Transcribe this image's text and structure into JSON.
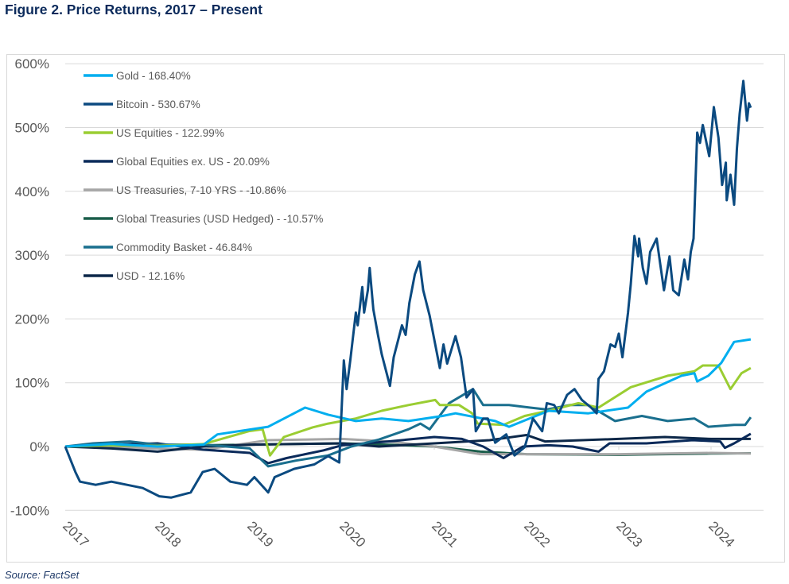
{
  "title": "Figure 2. Price Returns, 2017 – Present",
  "source": "Source: FactSet",
  "chart_data": {
    "type": "line",
    "title": "Figure 2. Price Returns, 2017 – Present",
    "xlabel": "",
    "ylabel": "",
    "x_units": "year",
    "xlim": [
      2017,
      2024.45
    ],
    "ylim": [
      -100,
      600
    ],
    "y_ticks": [
      600,
      500,
      400,
      300,
      200,
      100,
      0,
      -100
    ],
    "y_tick_labels": [
      "600%",
      "500%",
      "400%",
      "300%",
      "200%",
      "100%",
      "0%",
      "-100%"
    ],
    "x_ticks": [
      2017,
      2018,
      2019,
      2020,
      2021,
      2022,
      2023,
      2024
    ],
    "x_tick_labels": [
      "2017",
      "2018",
      "2019",
      "2020",
      "2021",
      "2022",
      "2023",
      "2024"
    ],
    "grid": "horizontal",
    "legend_position": "top-left",
    "series": [
      {
        "name": "Gold - 168.40%",
        "color": "#00aeef",
        "x": [
          2017,
          2017.5,
          2018,
          2018.5,
          2018.65,
          2019.2,
          2019.6,
          2019.85,
          2020.15,
          2020.43,
          2020.72,
          2021.09,
          2021.23,
          2021.66,
          2021.81,
          2022.24,
          2022.67,
          2023.1,
          2023.3,
          2023.68,
          2023.82,
          2023.85,
          2023.97,
          2024.11,
          2024.25,
          2024.43
        ],
        "y": [
          0,
          4,
          0,
          3,
          19,
          31,
          61,
          50,
          40,
          44,
          40,
          48,
          52,
          40,
          31,
          56,
          52,
          61,
          86,
          111,
          115,
          102,
          111,
          131,
          164,
          168
        ]
      },
      {
        "name": "Bitcoin - 530.67%",
        "color": "#0b4a80",
        "x": [
          2017,
          2017.11,
          2017.16,
          2017.33,
          2017.5,
          2017.67,
          2017.84,
          2018.02,
          2018.15,
          2018.36,
          2018.49,
          2018.62,
          2018.79,
          2018.97,
          2019.05,
          2019.2,
          2019.27,
          2019.48,
          2019.7,
          2019.85,
          2019.97,
          2020.02,
          2020.05,
          2020.09,
          2020.15,
          2020.17,
          2020.22,
          2020.24,
          2020.28,
          2020.3,
          2020.34,
          2020.39,
          2020.43,
          2020.52,
          2020.56,
          2020.65,
          2020.69,
          2020.73,
          2020.79,
          2020.84,
          2020.88,
          2020.95,
          2021.01,
          2021.06,
          2021.1,
          2021.14,
          2021.23,
          2021.29,
          2021.35,
          2021.42,
          2021.45,
          2021.53,
          2021.58,
          2021.66,
          2021.78,
          2021.87,
          2021.98,
          2022.07,
          2022.17,
          2022.22,
          2022.3,
          2022.35,
          2022.44,
          2022.52,
          2022.6,
          2022.7,
          2022.76,
          2022.78,
          2022.84,
          2022.91,
          2022.96,
          2023,
          2023.04,
          2023.1,
          2023.13,
          2023.17,
          2023.21,
          2023.22,
          2023.26,
          2023.3,
          2023.34,
          2023.41,
          2023.45,
          2023.49,
          2023.55,
          2023.59,
          2023.65,
          2023.71,
          2023.75,
          2023.78,
          2023.81,
          2023.85,
          2023.88,
          2023.91,
          2023.98,
          2024.03,
          2024.08,
          2024.12,
          2024.16,
          2024.17,
          2024.21,
          2024.25,
          2024.28,
          2024.31,
          2024.35,
          2024.39,
          2024.41,
          2024.43
        ],
        "y": [
          0,
          -40,
          -55,
          -60,
          -55,
          -60,
          -65,
          -78,
          -80,
          -72,
          -40,
          -35,
          -55,
          -60,
          -48,
          -72,
          -48,
          -35,
          -28,
          -15,
          -25,
          135,
          90,
          135,
          210,
          190,
          250,
          210,
          245,
          280,
          215,
          175,
          145,
          95,
          140,
          190,
          175,
          225,
          270,
          290,
          245,
          205,
          160,
          123,
          160,
          130,
          173,
          140,
          77,
          90,
          24,
          44,
          44,
          6,
          19,
          -14,
          -1,
          44,
          24,
          68,
          65,
          52,
          81,
          90,
          73,
          61,
          52,
          106,
          118,
          160,
          156,
          177,
          140,
          210,
          255,
          330,
          298,
          326,
          280,
          255,
          305,
          326,
          285,
          245,
          298,
          245,
          237,
          293,
          262,
          305,
          326,
          492,
          476,
          504,
          455,
          532,
          484,
          410,
          445,
          386,
          426,
          379,
          467,
          522,
          573,
          511,
          538,
          531
        ]
      },
      {
        "name": "US Equities - 122.99%",
        "color": "#9acd32",
        "x": [
          2017,
          2017.5,
          2018,
          2018.5,
          2018.99,
          2019.14,
          2019.22,
          2019.37,
          2019.68,
          2019.85,
          2020.15,
          2020.43,
          2020.72,
          2021.01,
          2021.06,
          2021.27,
          2021.41,
          2021.47,
          2021.75,
          2021.98,
          2022.24,
          2022.56,
          2022.78,
          2023.13,
          2023.53,
          2023.82,
          2023.91,
          2024.08,
          2024.21,
          2024.33,
          2024.43
        ],
        "y": [
          0,
          2,
          1,
          4,
          24,
          27,
          -14,
          15,
          30,
          36,
          44,
          56,
          65,
          73,
          65,
          65,
          52,
          36,
          34,
          48,
          56,
          68,
          61,
          93,
          111,
          118,
          127,
          127,
          90,
          115,
          123
        ]
      },
      {
        "name": "Global Equities ex. US - 20.09%",
        "color": "#0a2a5a",
        "x": [
          2017,
          2017.5,
          2018,
          2018.5,
          2019,
          2019.2,
          2019.4,
          2019.8,
          2020,
          2020.5,
          2021,
          2021.3,
          2021.53,
          2021.75,
          2021.96,
          2022.24,
          2022.5,
          2022.78,
          2022.9,
          2023.3,
          2023.8,
          2024.1,
          2024.15,
          2024.25,
          2024.43
        ],
        "y": [
          0,
          3,
          5,
          -5,
          -10,
          -26,
          -18,
          -6,
          2,
          8,
          15,
          12,
          0,
          -18,
          0,
          2,
          0,
          -8,
          5,
          5,
          10,
          8,
          -2,
          5,
          20
        ]
      },
      {
        "name": "US Treasuries, 7-10 YRS - -10.86%",
        "color": "#a6a6a6",
        "x": [
          2017,
          2017.5,
          2018,
          2018.5,
          2019.2,
          2019.6,
          2020,
          2020.5,
          2021,
          2021.5,
          2022,
          2023,
          2024,
          2024.43
        ],
        "y": [
          0,
          -2,
          -3,
          -5,
          10,
          11,
          12,
          8,
          0,
          -12,
          -12,
          -12,
          -10,
          -11
        ]
      },
      {
        "name": "Global Treasuries (USD Hedged) - -10.57%",
        "color": "#1b5e4b",
        "x": [
          2017,
          2017.5,
          2018,
          2018.5,
          2019,
          2019.5,
          2020,
          2020.5,
          2021,
          2021.5,
          2022,
          2023,
          2024,
          2024.43
        ],
        "y": [
          0,
          1,
          2,
          2,
          3,
          4,
          5,
          3,
          0,
          -8,
          -12,
          -13,
          -11,
          -10.6
        ]
      },
      {
        "name": "Commodity Basket - 46.84%",
        "color": "#1a6f8e",
        "x": [
          2017,
          2017.3,
          2017.7,
          2018,
          2018.5,
          2019,
          2019.2,
          2019.5,
          2019.85,
          2020.1,
          2020.4,
          2020.72,
          2020.85,
          2020.95,
          2021.16,
          2021.42,
          2021.53,
          2021.81,
          2022.04,
          2022.22,
          2022.47,
          2022.67,
          2022.96,
          2023.25,
          2023.53,
          2023.82,
          2023.97,
          2024.25,
          2024.37,
          2024.43
        ],
        "y": [
          0,
          5,
          8,
          3,
          3,
          -3,
          -31,
          -22,
          -14,
          0,
          11,
          27,
          36,
          27,
          68,
          90,
          65,
          65,
          61,
          58,
          65,
          65,
          40,
          48,
          40,
          44,
          31,
          34,
          34,
          46
        ]
      },
      {
        "name": "USD - 12.16%",
        "color": "#0c2748",
        "x": [
          2017,
          2017.5,
          2018,
          2018.5,
          2019,
          2020,
          2020.4,
          2021,
          2021.6,
          2022,
          2022.2,
          2022.6,
          2023,
          2023.5,
          2024,
          2024.43
        ],
        "y": [
          0,
          -3,
          -8,
          0,
          3,
          5,
          0,
          5,
          10,
          18,
          8,
          10,
          12,
          15,
          12,
          12
        ]
      }
    ]
  }
}
